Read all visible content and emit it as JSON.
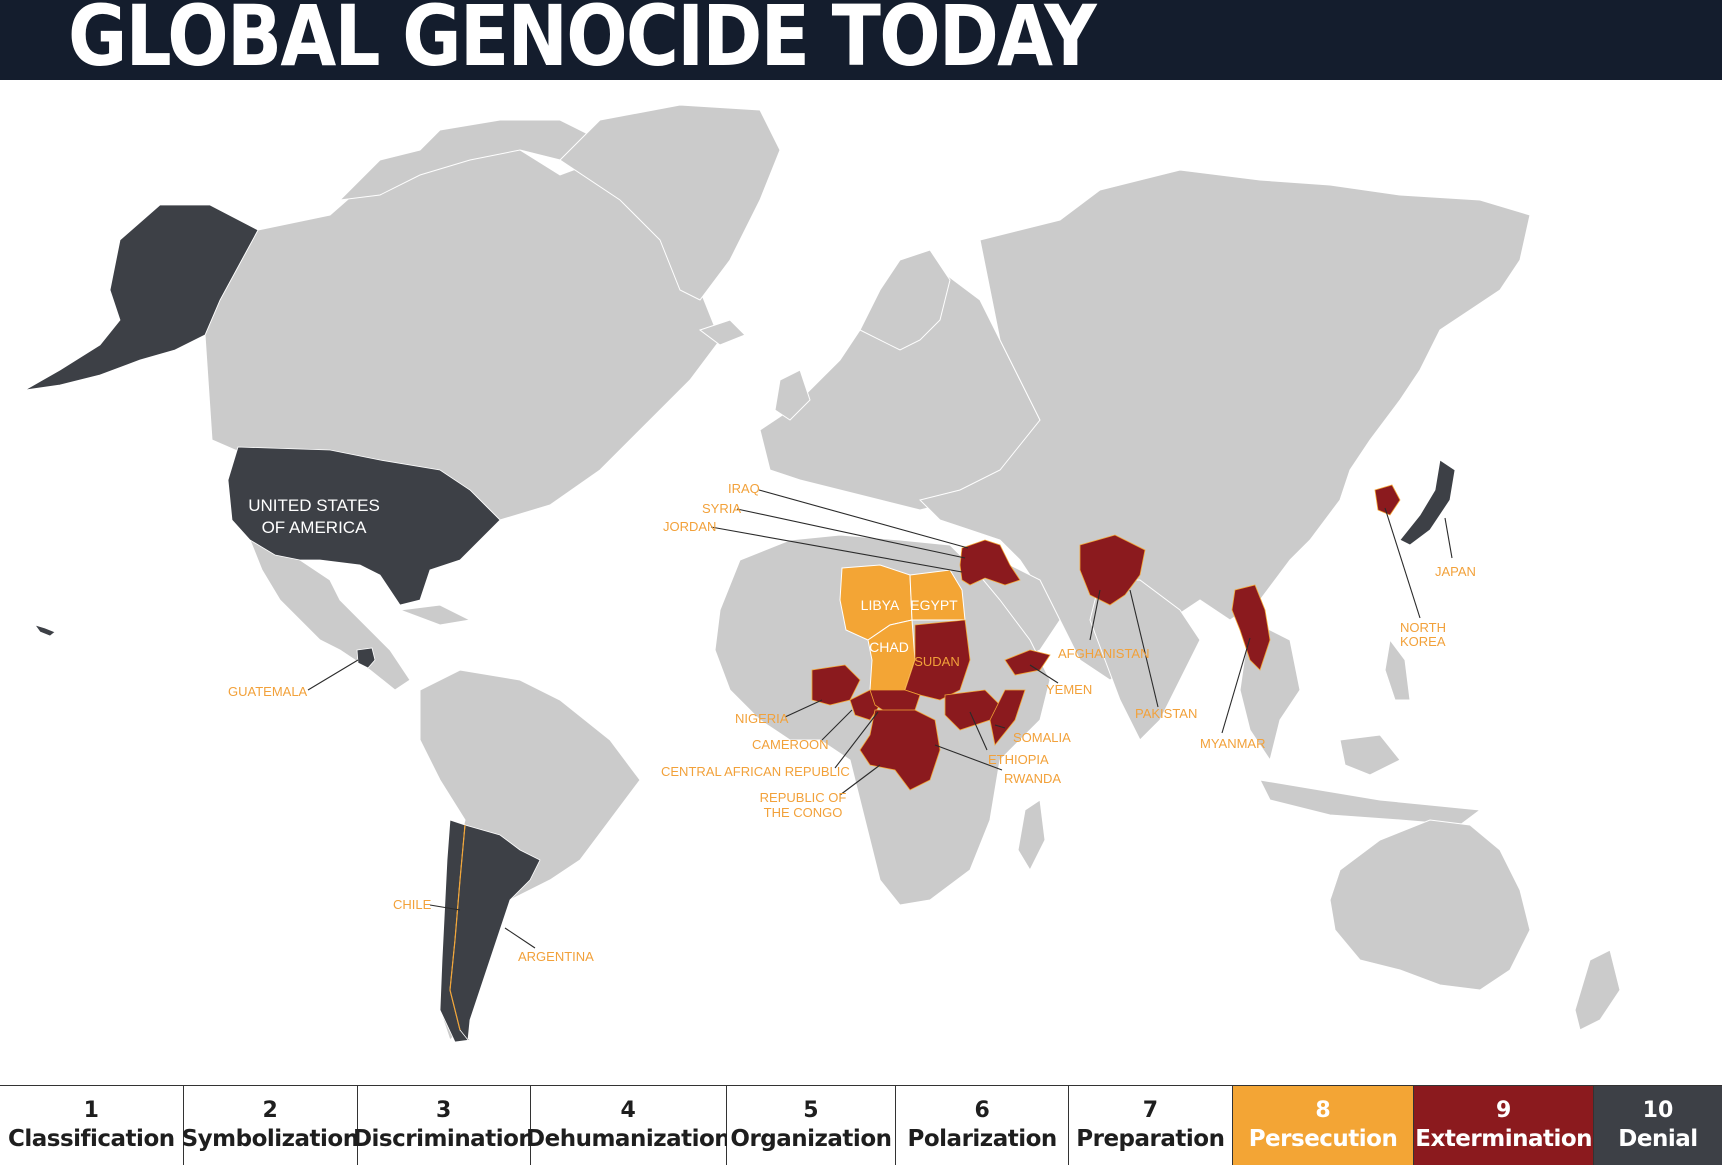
{
  "title": "GLOBAL GENOCIDE TODAY",
  "colors": {
    "land": "#cbcbcb",
    "persecution": "#f3a535",
    "extermination": "#8b1a1e",
    "denial": "#3d4046",
    "label_orange": "#f2a13a",
    "header_bg": "#141d2d"
  },
  "map": {
    "usa_label_line1": "UNITED STATES",
    "usa_label_line2": "OF AMERICA",
    "labels": {
      "iraq": "IRAQ",
      "syria": "SYRIA",
      "jordan": "JORDAN",
      "libya": "LIBYA",
      "egypt": "EGYPT",
      "chad": "CHAD",
      "sudan": "SUDAN",
      "yemen": "YEMEN",
      "afghanistan": "AFGHANISTAN",
      "pakistan": "PAKISTAN",
      "myanmar": "MYANMAR",
      "japan": "JAPAN",
      "north_korea_line1": "NORTH",
      "north_korea_line2": "KOREA",
      "guatemala": "GUATEMALA",
      "nigeria": "NIGERIA",
      "cameroon": "CAMEROON",
      "car": "CENTRAL AFRICAN REPUBLIC",
      "congo_line1": "REPUBLIC OF",
      "congo_line2": "THE CONGO",
      "somalia": "SOMALIA",
      "ethiopia": "ETHIOPIA",
      "rwanda": "RWANDA",
      "chile": "CHILE",
      "argentina": "ARGENTINA"
    }
  },
  "legend": {
    "stages": [
      {
        "number": "1",
        "name": "Classification",
        "color": "#ffffff",
        "text_color": "#1e1e1e"
      },
      {
        "number": "2",
        "name": "Symbolization",
        "color": "#ffffff",
        "text_color": "#1e1e1e"
      },
      {
        "number": "3",
        "name": "Discrimination",
        "color": "#ffffff",
        "text_color": "#1e1e1e"
      },
      {
        "number": "4",
        "name": "Dehumanization",
        "color": "#ffffff",
        "text_color": "#1e1e1e"
      },
      {
        "number": "5",
        "name": "Organization",
        "color": "#ffffff",
        "text_color": "#1e1e1e"
      },
      {
        "number": "6",
        "name": "Polarization",
        "color": "#ffffff",
        "text_color": "#1e1e1e"
      },
      {
        "number": "7",
        "name": "Preparation",
        "color": "#ffffff",
        "text_color": "#1e1e1e"
      },
      {
        "number": "8",
        "name": "Persecution",
        "color": "#f3a535",
        "text_color": "#ffffff"
      },
      {
        "number": "9",
        "name": "Extermination",
        "color": "#8b1a1e",
        "text_color": "#ffffff"
      },
      {
        "number": "10",
        "name": "Denial",
        "color": "#3d4046",
        "text_color": "#ffffff"
      }
    ]
  }
}
